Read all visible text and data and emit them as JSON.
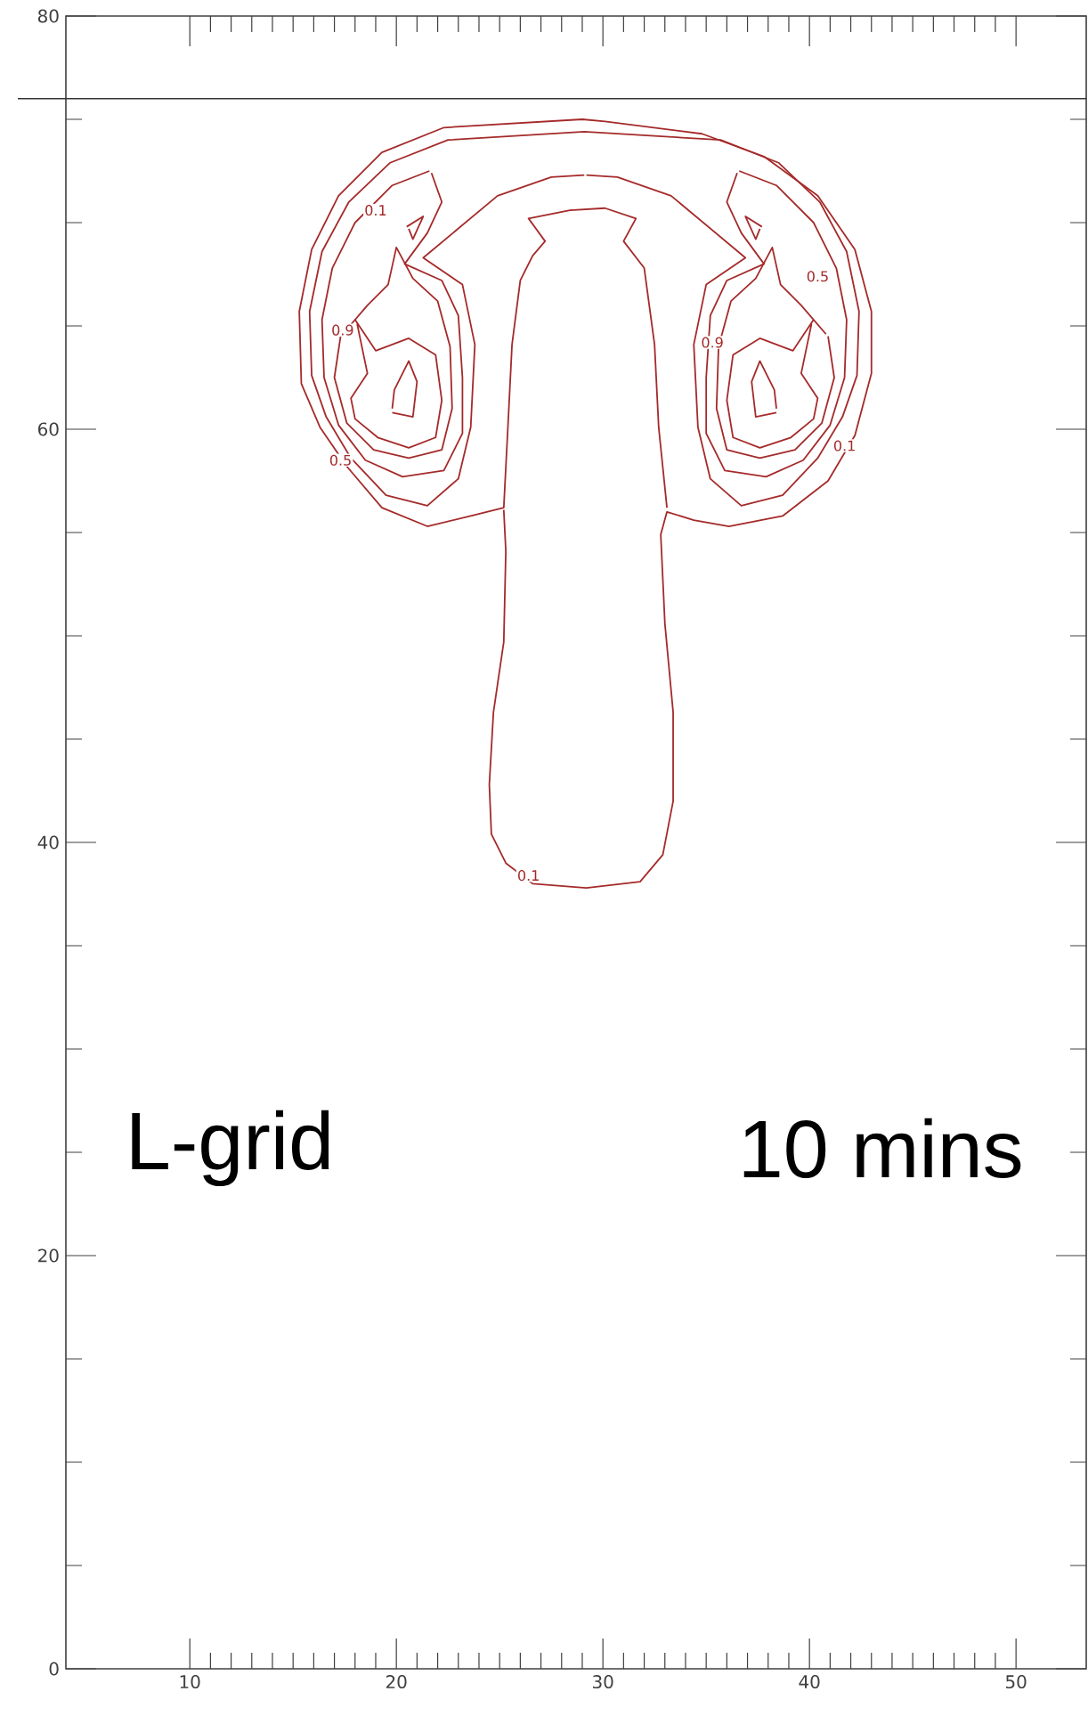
{
  "chart_data": {
    "type": "line",
    "marker": "none",
    "line_style": "solid",
    "xlim": [
      4,
      53.4
    ],
    "ylim": [
      0,
      80
    ],
    "xticks": [
      10,
      20,
      30,
      40,
      50
    ],
    "yticks": [
      0,
      20,
      40,
      60,
      80
    ],
    "ref_lines": [
      {
        "axis": "y",
        "value": 76
      }
    ],
    "annotations": [
      "L-grid",
      "10 mins",
      {
        "text": "0.1",
        "x": 19.0,
        "y": 70.6
      },
      {
        "text": "0.9",
        "x": 17.4,
        "y": 64.8
      },
      {
        "text": "0.5",
        "x": 17.3,
        "y": 58.5
      },
      {
        "text": "0.1",
        "x": 26.4,
        "y": 38.4
      },
      {
        "text": "0.9",
        "x": 35.3,
        "y": 64.2
      },
      {
        "text": "0.5",
        "x": 40.4,
        "y": 67.4
      },
      {
        "text": "0.1",
        "x": 41.7,
        "y": 59.2
      }
    ],
    "series": [
      {
        "color": "#a52a2a",
        "x": [
          25.2,
          25.3,
          25.2,
          24.7,
          24.5,
          24.6,
          25.3,
          26.6,
          29.2,
          31.8,
          32.9,
          33.4,
          33.4,
          33.0,
          32.8,
          33.1,
          34.4,
          36.1,
          38.7,
          40.9,
          42.2,
          43.0,
          43.0,
          42.2,
          40.4,
          37.8,
          34.8,
          30.1,
          29.0,
          22.3,
          19.3,
          17.2,
          15.9,
          15.3,
          15.4,
          16.3,
          17.6,
          19.3,
          21.5,
          23.6,
          25.2,
          25.4,
          25.6,
          26.0,
          26.6,
          27.2,
          26.4,
          28.4,
          30.1,
          31.6,
          31.0,
          32.0,
          32.5,
          32.7,
          33.1
        ],
        "values": [
          56.1,
          54.1,
          49.7,
          46.3,
          42.8,
          40.4,
          39.0,
          38.0,
          37.8,
          38.1,
          39.4,
          42.0,
          46.3,
          50.6,
          54.9,
          56.0,
          55.6,
          55.3,
          55.8,
          57.5,
          59.7,
          62.7,
          65.7,
          68.7,
          71.3,
          73.2,
          74.3,
          74.9,
          75.0,
          74.6,
          73.4,
          71.3,
          68.7,
          65.7,
          62.2,
          60.1,
          58.2,
          56.2,
          55.3,
          55.8,
          56.2,
          60.1,
          64.1,
          67.2,
          68.4,
          69.1,
          70.2,
          70.6,
          70.7,
          70.2,
          69.1,
          67.8,
          64.1,
          60.1,
          56.2
        ]
      },
      {
        "color": "#a52a2a",
        "x": [
          29.1,
          27.5,
          24.9,
          21.3,
          23.2,
          23.8,
          23.6,
          23.0,
          21.5,
          19.5,
          17.8,
          16.6,
          15.9,
          15.8,
          16.4,
          17.7,
          19.7,
          22.5,
          29.1,
          35.7,
          38.5,
          40.5,
          41.8,
          42.4,
          42.3,
          41.6,
          40.4,
          38.7,
          36.7,
          35.2,
          34.6,
          34.4,
          35.0,
          36.9,
          33.3,
          30.7,
          29.2
        ],
        "values": [
          72.3,
          72.2,
          71.3,
          68.3,
          67.0,
          64.1,
          60.1,
          57.6,
          56.3,
          56.8,
          58.6,
          60.6,
          62.6,
          65.7,
          68.6,
          71.0,
          72.9,
          74.0,
          74.4,
          74.0,
          72.9,
          71.0,
          68.6,
          65.7,
          62.6,
          60.6,
          58.6,
          56.8,
          56.3,
          57.6,
          60.1,
          64.1,
          67.0,
          68.3,
          71.3,
          72.2,
          72.3
        ]
      },
      {
        "color": "#a52a2a",
        "x": [
          21.6,
          19.8,
          18.0,
          16.9,
          16.4,
          16.5,
          17.2,
          18.5,
          20.3,
          22.3,
          23.2,
          23.2,
          23.0,
          22.2,
          20.4,
          21.5,
          22.2,
          21.7
        ],
        "values": [
          72.5,
          71.8,
          70.0,
          67.8,
          65.3,
          62.5,
          60.2,
          58.5,
          57.7,
          58.0,
          59.8,
          62.5,
          65.5,
          67.2,
          68.0,
          69.5,
          71.0,
          72.4
        ]
      },
      {
        "color": "#a52a2a",
        "x": [
          36.6,
          38.4,
          40.2,
          41.3,
          41.8,
          41.7,
          41.0,
          39.7,
          37.9,
          35.9,
          35.0,
          35.0,
          35.2,
          36.0,
          37.8,
          36.7,
          36.0,
          36.5
        ],
        "values": [
          72.5,
          71.8,
          70.0,
          67.8,
          65.3,
          62.5,
          60.2,
          58.5,
          57.7,
          58.0,
          59.8,
          62.5,
          65.5,
          67.2,
          68.0,
          69.5,
          71.0,
          72.4
        ]
      },
      {
        "color": "#a52a2a",
        "x": [
          17.3,
          17.0,
          17.6,
          18.9,
          20.6,
          22.2,
          22.7,
          22.6,
          22.0,
          20.8,
          20.0,
          19.6,
          18.6,
          17.4
        ],
        "values": [
          64.5,
          62.5,
          60.3,
          59.0,
          58.6,
          59.0,
          61.0,
          64.0,
          66.2,
          67.3,
          68.8,
          67.0,
          66.0,
          64.6
        ]
      },
      {
        "color": "#a52a2a",
        "x": [
          40.9,
          41.2,
          40.6,
          39.3,
          37.6,
          36.0,
          35.5,
          35.6,
          36.2,
          37.4,
          38.2,
          38.6,
          39.6,
          40.8
        ],
        "values": [
          64.5,
          62.5,
          60.3,
          59.0,
          58.6,
          59.0,
          61.0,
          64.0,
          66.2,
          67.3,
          68.8,
          67.0,
          66.0,
          64.6
        ]
      },
      {
        "color": "#a52a2a",
        "x": [
          18.0,
          19.0,
          20.6,
          21.9,
          22.2,
          21.9,
          20.6,
          19.1,
          18.0,
          17.8,
          18.6,
          18.1
        ],
        "values": [
          65.3,
          63.8,
          64.4,
          63.6,
          61.4,
          59.6,
          59.1,
          59.6,
          60.5,
          61.5,
          62.7,
          65.1
        ]
      },
      {
        "color": "#a52a2a",
        "x": [
          40.2,
          39.2,
          37.6,
          36.3,
          36.0,
          36.3,
          37.6,
          39.1,
          40.2,
          40.4,
          39.6,
          40.1
        ],
        "values": [
          65.3,
          63.8,
          64.4,
          63.6,
          61.4,
          59.6,
          59.1,
          59.6,
          60.5,
          61.5,
          62.7,
          65.1
        ]
      },
      {
        "color": "#a52a2a",
        "x": [
          19.8,
          20.8,
          21.0,
          20.6,
          19.9,
          19.8
        ],
        "values": [
          60.8,
          60.6,
          62.3,
          63.3,
          61.9,
          61.0
        ]
      },
      {
        "color": "#a52a2a",
        "x": [
          38.4,
          37.4,
          37.2,
          37.6,
          38.3,
          38.4
        ],
        "values": [
          60.8,
          60.6,
          62.3,
          63.3,
          61.9,
          61.0
        ]
      },
      {
        "color": "#a52a2a",
        "x": [
          20.5,
          21.3,
          20.8,
          20.6
        ],
        "values": [
          69.8,
          70.3,
          69.2,
          69.7
        ]
      },
      {
        "color": "#a52a2a",
        "x": [
          37.7,
          36.9,
          37.4,
          37.6
        ],
        "values": [
          69.8,
          70.3,
          69.2,
          69.7
        ]
      }
    ]
  }
}
